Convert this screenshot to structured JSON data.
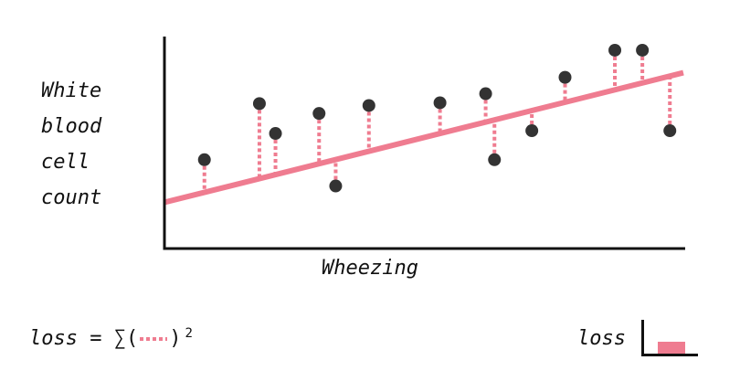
{
  "chart_data": {
    "type": "scatter",
    "xlabel": "Wheezing",
    "ylabel_lines": [
      "White",
      "blood",
      "cell",
      "count"
    ],
    "xlim": [
      0,
      100
    ],
    "ylim": [
      0,
      100
    ],
    "points": [
      {
        "x": 7.7,
        "y": 41.4
      },
      {
        "x": 18.3,
        "y": 68.1
      },
      {
        "x": 21.4,
        "y": 53.9
      },
      {
        "x": 29.8,
        "y": 63.4
      },
      {
        "x": 33.0,
        "y": 28.9
      },
      {
        "x": 39.4,
        "y": 67.2
      },
      {
        "x": 53.1,
        "y": 68.5
      },
      {
        "x": 61.9,
        "y": 72.8
      },
      {
        "x": 63.6,
        "y": 41.4
      },
      {
        "x": 70.8,
        "y": 55.2
      },
      {
        "x": 77.2,
        "y": 80.6
      },
      {
        "x": 86.8,
        "y": 93.5
      },
      {
        "x": 92.1,
        "y": 93.5
      },
      {
        "x": 97.4,
        "y": 55.2
      }
    ],
    "fit_line": {
      "x0": 0,
      "y0": 21.1,
      "x1": 100,
      "y1": 82.8
    },
    "colors": {
      "points": "#333333",
      "line": "#ef7c90",
      "residuals": "#ef7c90",
      "axes": "#111111"
    },
    "grid": false,
    "legend": "none"
  },
  "formula": {
    "lhs": "loss",
    "equals": "=",
    "sum": "∑(",
    "close": ")",
    "power": "2"
  },
  "loss_meter": {
    "label": "loss",
    "level": 0.35,
    "color": "#ef7c90"
  }
}
